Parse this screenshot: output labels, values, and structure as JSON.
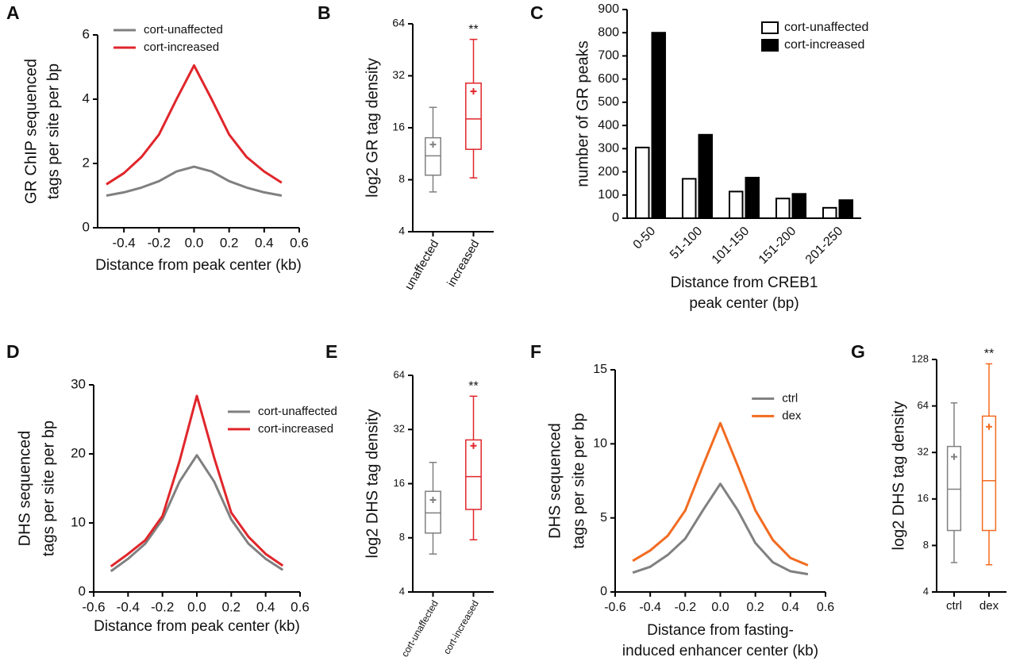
{
  "chart_data": [
    {
      "type": "line",
      "panel": "A",
      "xlabel": "Distance from peak center (kb)",
      "ylabel": [
        "GR ChIP sequenced",
        "tags per site per bp"
      ],
      "x": [
        -0.5,
        -0.4,
        -0.3,
        -0.2,
        -0.1,
        0,
        0.1,
        0.2,
        0.3,
        0.4,
        0.5
      ],
      "series": [
        {
          "name": "cort-unaffected",
          "color": "#808080",
          "values": [
            1.0,
            1.1,
            1.25,
            1.45,
            1.75,
            1.9,
            1.75,
            1.45,
            1.25,
            1.1,
            1.0
          ]
        },
        {
          "name": "cort-increased",
          "color": "#e0262b",
          "values": [
            1.35,
            1.7,
            2.2,
            2.9,
            4.0,
            5.05,
            4.0,
            2.9,
            2.2,
            1.75,
            1.4
          ]
        }
      ],
      "xlim": [
        -0.55,
        0.6
      ],
      "xticks": [
        -0.4,
        -0.2,
        {
          "value": 0,
          "label": "0.0"
        },
        0.2,
        0.4,
        0.6
      ],
      "ylim": [
        0,
        6
      ],
      "yticks": [
        0,
        2,
        4,
        6
      ],
      "legend": "upper left"
    },
    {
      "type": "box",
      "panel": "B",
      "ylabel": "log2 GR tag density",
      "categories": [
        "unaffected",
        "increased"
      ],
      "colors": [
        "#808080",
        "#e0262b"
      ],
      "whislo": [
        6.8,
        8.2
      ],
      "q1": [
        8.5,
        12
      ],
      "med": [
        11,
        18
      ],
      "q3": [
        14,
        29
      ],
      "whishi": [
        21,
        52
      ],
      "mean": [
        12.8,
        26
      ],
      "annotation": "**",
      "log": true,
      "ylim": [
        4,
        64
      ],
      "yticks": [
        4,
        8,
        16,
        32,
        64
      ]
    },
    {
      "type": "bar",
      "panel": "C",
      "xlabel": [
        "Distance from CREB1",
        "peak center (bp)"
      ],
      "ylabel": "number of GR peaks",
      "categories": [
        "0-50",
        "51-100",
        "101-150",
        "151-200",
        "201-250"
      ],
      "series": [
        {
          "name": "cort-unaffected",
          "color": "#ffffff",
          "edgecolor": "#000000",
          "values": [
            305,
            170,
            115,
            85,
            45
          ]
        },
        {
          "name": "cort-increased",
          "color": "#000000",
          "edgecolor": "#000000",
          "values": [
            800,
            360,
            175,
            105,
            78
          ]
        }
      ],
      "ylim": [
        0,
        900
      ],
      "yticks": [
        0,
        100,
        200,
        300,
        400,
        500,
        600,
        700,
        800,
        900
      ],
      "legend": "upper right"
    },
    {
      "type": "line",
      "panel": "D",
      "xlabel": "Distance from peak center (kb)",
      "ylabel": [
        "DHS sequenced",
        "tags per site per bp"
      ],
      "x": [
        -0.5,
        -0.4,
        -0.3,
        -0.2,
        -0.1,
        0,
        0.1,
        0.2,
        0.3,
        0.4,
        0.5
      ],
      "series": [
        {
          "name": "cort-unaffected",
          "color": "#808080",
          "values": [
            3.0,
            4.8,
            7.0,
            10.5,
            16.0,
            19.8,
            16.0,
            10.5,
            7.0,
            4.8,
            3.2
          ]
        },
        {
          "name": "cort-increased",
          "color": "#e0262b",
          "values": [
            3.7,
            5.5,
            7.5,
            11.0,
            19.0,
            28.4,
            19.5,
            11.5,
            8.0,
            5.5,
            3.8
          ]
        }
      ],
      "xlim": [
        -0.6,
        0.6
      ],
      "xticks": [
        -0.6,
        -0.4,
        -0.2,
        {
          "value": 0,
          "label": "0.0"
        },
        0.2,
        0.4,
        0.6
      ],
      "ylim": [
        0,
        30
      ],
      "yticks": [
        0,
        10,
        20,
        30
      ],
      "legend": "right"
    },
    {
      "type": "box",
      "panel": "E",
      "ylabel": "log2 DHS tag density",
      "categories": [
        "cort-unaffected",
        "cort-increased"
      ],
      "colors": [
        "#808080",
        "#e0262b"
      ],
      "whislo": [
        6.5,
        7.8
      ],
      "q1": [
        8.5,
        11.5
      ],
      "med": [
        11,
        17.5
      ],
      "q3": [
        14.5,
        28
      ],
      "whishi": [
        21,
        49
      ],
      "mean": [
        13,
        26
      ],
      "annotation": "**",
      "log": true,
      "ylim": [
        4,
        64
      ],
      "yticks": [
        4,
        8,
        16,
        32,
        64
      ]
    },
    {
      "type": "line",
      "panel": "F",
      "xlabel": [
        "Distance from fasting-",
        "induced enhancer center (kb)"
      ],
      "ylabel": [
        "DHS sequenced",
        "tags per site per bp"
      ],
      "x": [
        -0.5,
        -0.4,
        -0.3,
        -0.2,
        -0.1,
        0,
        0.1,
        0.2,
        0.3,
        0.4,
        0.5
      ],
      "series": [
        {
          "name": "ctrl",
          "color": "#808080",
          "values": [
            1.3,
            1.7,
            2.5,
            3.6,
            5.5,
            7.3,
            5.5,
            3.3,
            2.0,
            1.4,
            1.2
          ]
        },
        {
          "name": "dex",
          "color": "#f26b21",
          "values": [
            2.1,
            2.8,
            3.8,
            5.5,
            8.5,
            11.4,
            8.5,
            5.5,
            3.5,
            2.3,
            1.8
          ]
        }
      ],
      "xlim": [
        -0.6,
        0.6
      ],
      "xticks": [
        -0.6,
        -0.4,
        -0.2,
        {
          "value": 0,
          "label": "0.0"
        },
        0.2,
        0.4,
        0.6
      ],
      "ylim": [
        0,
        15
      ],
      "yticks": [
        0,
        5,
        10,
        15
      ],
      "legend": "right"
    },
    {
      "type": "box",
      "panel": "G",
      "ylabel": "log2 DHS tag density",
      "categories": [
        "ctrl",
        "dex"
      ],
      "colors": [
        "#808080",
        "#f26b21"
      ],
      "whislo": [
        6.2,
        6
      ],
      "q1": [
        10,
        10
      ],
      "med": [
        18.5,
        21
      ],
      "q3": [
        35,
        55
      ],
      "whishi": [
        67,
        120
      ],
      "mean": [
        30,
        47
      ],
      "annotation": "**",
      "log": true,
      "ylim": [
        4,
        128
      ],
      "yticks": [
        4,
        8,
        16,
        32,
        64,
        128
      ]
    }
  ]
}
